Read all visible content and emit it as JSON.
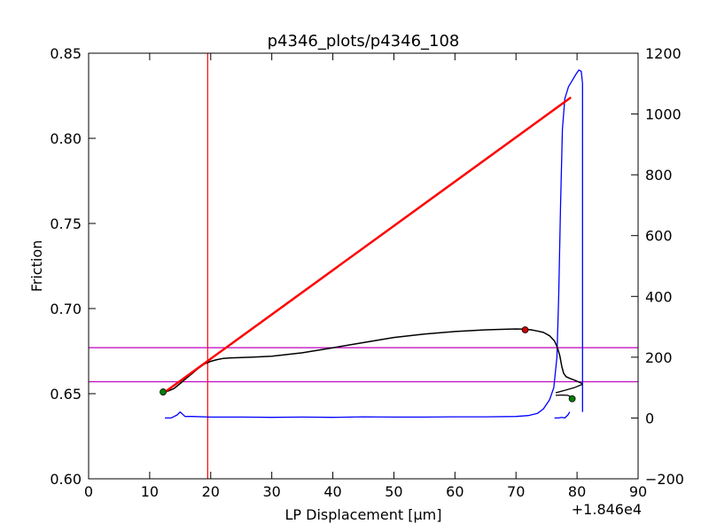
{
  "chart_data": {
    "type": "line",
    "title": "p4346_plots/p4346_108",
    "xlabel": "LP Displacement [μm]",
    "ylabel": "Friction",
    "x_offset_label": "+1.846e4",
    "xlim": [
      0,
      90
    ],
    "ylim": [
      0.6,
      0.85
    ],
    "y2lim": [
      -200,
      1200
    ],
    "x_ticks": [
      0,
      10,
      20,
      30,
      40,
      50,
      60,
      70,
      80,
      90
    ],
    "y_ticks": [
      0.6,
      0.65,
      0.7,
      0.75,
      0.8,
      0.85
    ],
    "y2_ticks": [
      -200,
      0,
      200,
      400,
      600,
      800,
      1000,
      1200
    ],
    "vline_x": [
      19.5
    ],
    "hlines_y": [
      0.657,
      0.677
    ],
    "friction_series": {
      "color": "#000000",
      "x": [
        12.5,
        13,
        14,
        15,
        16,
        17,
        18,
        19,
        20,
        21,
        22,
        23,
        25,
        27,
        30,
        35,
        40,
        45,
        50,
        55,
        60,
        65,
        68,
        70,
        71.5,
        72.5,
        73.5,
        74.5,
        75.5,
        76.3,
        76.8,
        77.2,
        77.5,
        77.8,
        78.2,
        78.8,
        79.5,
        80.2,
        80.8
      ],
      "y": [
        0.651,
        0.6515,
        0.653,
        0.656,
        0.659,
        0.662,
        0.665,
        0.6675,
        0.669,
        0.67,
        0.6707,
        0.671,
        0.6712,
        0.6715,
        0.672,
        0.674,
        0.677,
        0.68,
        0.683,
        0.685,
        0.6865,
        0.6875,
        0.6878,
        0.688,
        0.6879,
        0.6875,
        0.6868,
        0.686,
        0.684,
        0.681,
        0.677,
        0.672,
        0.666,
        0.662,
        0.66,
        0.659,
        0.658,
        0.657,
        0.656
      ]
    },
    "friction_tail": {
      "color": "#000000",
      "x": [
        76.5,
        78,
        79.5,
        80.9
      ],
      "y": [
        0.6505,
        0.652,
        0.6535,
        0.6555
      ]
    },
    "friction_hook": {
      "color": "#000000",
      "x": [
        76.5,
        77.5,
        78.5,
        79.2,
        79.5
      ],
      "y": [
        0.649,
        0.6492,
        0.649,
        0.6478,
        0.6465
      ]
    },
    "normal_stress_series": {
      "color": "#0000ff",
      "axis": "right",
      "x": [
        12.5,
        13.5,
        14.5,
        15,
        15.8,
        17,
        20,
        25,
        30,
        35,
        40,
        45,
        50,
        55,
        60,
        65,
        70,
        72,
        73.5,
        74.5,
        75.5,
        76.2,
        76.7,
        77,
        77.3,
        77.6,
        78,
        78.6,
        79.2,
        79.8,
        80.3,
        80.7,
        80.9,
        80.9,
        80.9
      ],
      "y": [
        0,
        0,
        10,
        20,
        5,
        5,
        3,
        3,
        2,
        3,
        2,
        4,
        3,
        3,
        4,
        4,
        5,
        8,
        15,
        30,
        60,
        100,
        200,
        400,
        700,
        950,
        1050,
        1090,
        1110,
        1130,
        1145,
        1140,
        1100,
        600,
        20
      ]
    },
    "normal_stress_hook": {
      "color": "#0000ff",
      "axis": "right",
      "x": [
        76.3,
        77,
        77.5,
        78,
        78.5,
        78.8
      ],
      "y": [
        0,
        0,
        2,
        0,
        10,
        20
      ]
    },
    "fit_line": {
      "color": "#ff0000",
      "x": [
        12.5,
        79
      ],
      "y": [
        0.651,
        0.824
      ]
    },
    "markers": [
      {
        "x": 12.2,
        "y": 0.651,
        "color": "#008000"
      },
      {
        "x": 71.5,
        "y": 0.6875,
        "color": "#cc0000"
      },
      {
        "x": 79.2,
        "y": 0.647,
        "color": "#008000"
      }
    ]
  }
}
